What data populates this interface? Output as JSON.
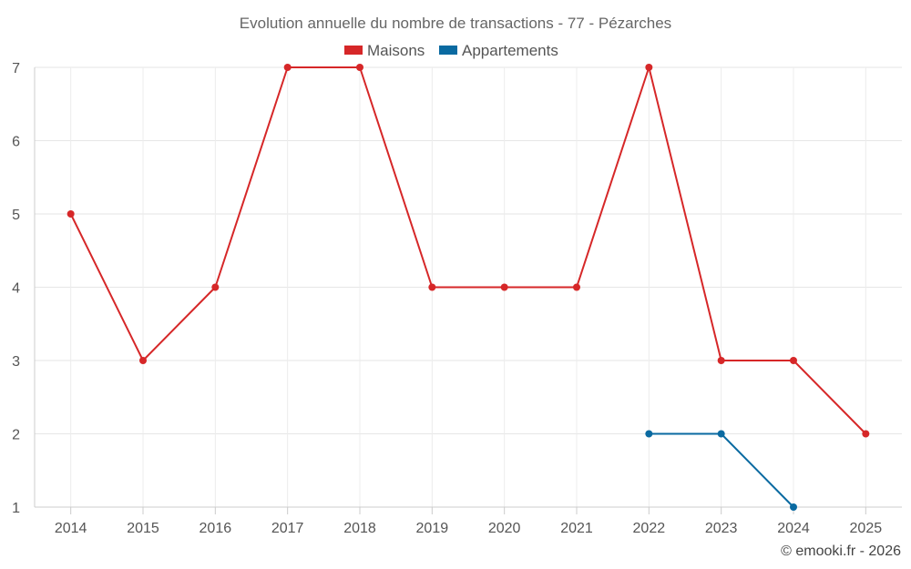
{
  "chart_data": {
    "type": "line",
    "title": "Evolution annuelle du nombre de transactions - 77 - Pézarches",
    "categories": [
      "2014",
      "2015",
      "2016",
      "2017",
      "2018",
      "2019",
      "2020",
      "2021",
      "2022",
      "2023",
      "2024",
      "2025"
    ],
    "ylim": [
      1,
      7
    ],
    "yticks": [
      "1",
      "2",
      "3",
      "4",
      "5",
      "6",
      "7"
    ],
    "grid": true,
    "legend_position": "top-center",
    "series": [
      {
        "name": "Maisons",
        "color": "#d62728",
        "values": [
          5,
          3,
          4,
          7,
          7,
          4,
          4,
          4,
          7,
          3,
          3,
          2
        ]
      },
      {
        "name": "Appartements",
        "color": "#0a6aa1",
        "values": [
          null,
          null,
          null,
          null,
          null,
          null,
          null,
          null,
          2,
          2,
          1,
          null
        ]
      }
    ]
  },
  "credit": "© emooki.fr - 2026"
}
